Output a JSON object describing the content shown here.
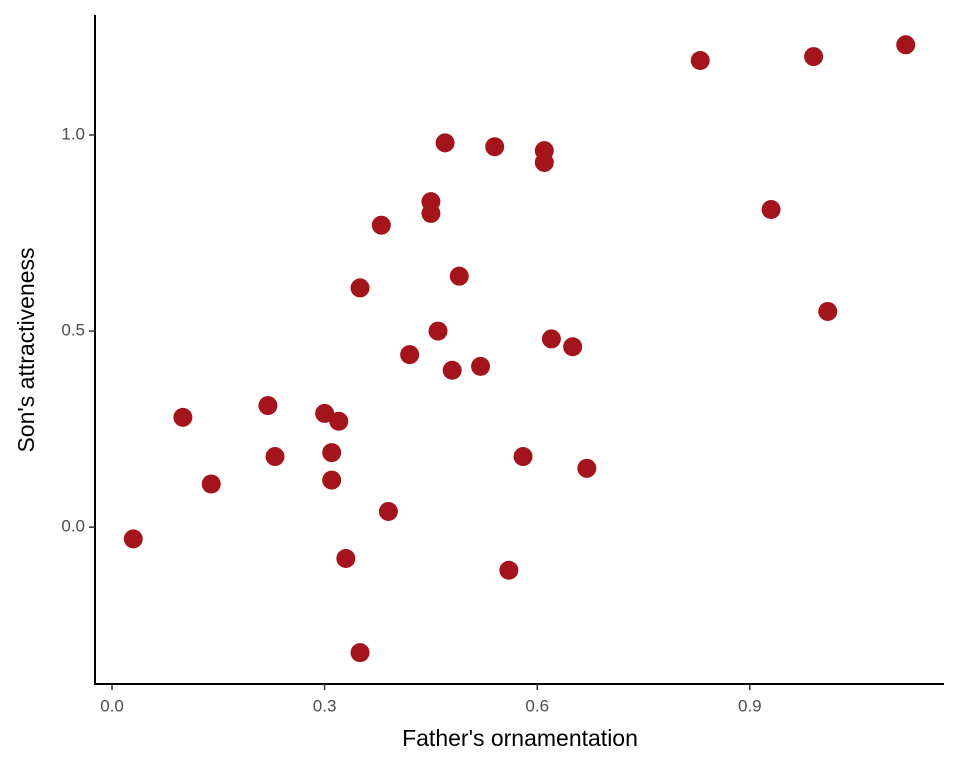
{
  "chart_data": {
    "type": "scatter",
    "x_label": "Father's ornamentation",
    "y_label": "Son's attractiveness",
    "x": [
      0.03,
      0.1,
      0.14,
      0.22,
      0.23,
      0.3,
      0.32,
      0.31,
      0.31,
      0.33,
      0.35,
      0.35,
      0.38,
      0.39,
      0.42,
      0.45,
      0.45,
      0.46,
      0.47,
      0.48,
      0.49,
      0.52,
      0.54,
      0.56,
      0.58,
      0.61,
      0.61,
      0.62,
      0.65,
      0.67,
      0.83,
      0.93,
      0.99,
      1.01,
      1.12
    ],
    "values": [
      -0.03,
      0.28,
      0.11,
      0.31,
      0.18,
      0.29,
      0.27,
      0.19,
      0.12,
      -0.08,
      0.61,
      -0.32,
      0.77,
      0.04,
      0.44,
      0.83,
      0.8,
      0.5,
      0.98,
      0.4,
      0.64,
      0.41,
      0.97,
      -0.11,
      0.18,
      0.96,
      0.93,
      0.48,
      0.46,
      0.15,
      1.19,
      0.81,
      1.2,
      0.55,
      1.23
    ],
    "color": "#a3141c",
    "xlim": [
      -0.024,
      1.174
    ],
    "ylim": [
      -0.4,
      1.306
    ],
    "xticks": [
      {
        "value": 0,
        "label": "0.0"
      },
      0.3,
      0.6,
      0.9
    ],
    "yticks": [
      {
        "value": 0,
        "label": "0.0"
      },
      0.5,
      {
        "value": 1,
        "label": "1.0"
      }
    ]
  }
}
